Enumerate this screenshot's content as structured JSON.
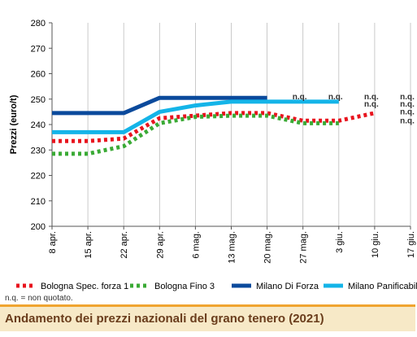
{
  "chart_data": {
    "type": "line",
    "ylabel": "Prezzi (euro/t)",
    "ylim": [
      200,
      280
    ],
    "yticks": [
      200,
      210,
      220,
      230,
      240,
      250,
      260,
      270,
      280
    ],
    "categories": [
      "8 apr.",
      "15 apr.",
      "22 apr.",
      "29 apr.",
      "6 mag.",
      "13 mag.",
      "20 mag.",
      "27 mag.",
      "3 giu.",
      "10 giu.",
      "17 giu."
    ],
    "grid": "vertical",
    "legend_position": "bottom",
    "series": [
      {
        "name": "Bologna Spec. forza 1",
        "color": "#e8141e",
        "style": "dotted",
        "values": [
          233.5,
          233.5,
          234.5,
          242.5,
          243.5,
          244.5,
          244.5,
          241.5,
          241.5,
          244.5,
          null
        ]
      },
      {
        "name": "Bologna Fino 3",
        "color": "#3aaa35",
        "style": "dotted",
        "values": [
          228.5,
          228.5,
          231.5,
          240.5,
          243,
          243.5,
          243.5,
          240.5,
          240.5,
          null,
          null
        ]
      },
      {
        "name": "Milano Di Forza",
        "color": "#0b4a9c",
        "style": "solid",
        "values": [
          244.5,
          244.5,
          244.5,
          250.5,
          250.5,
          250.5,
          250.5,
          null,
          null,
          null,
          null
        ]
      },
      {
        "name": "Milano Panificabile",
        "color": "#14b4e8",
        "style": "solid",
        "values": [
          237,
          237,
          237,
          245,
          247.5,
          249,
          249,
          249,
          249,
          null,
          null
        ]
      }
    ],
    "annotations": [
      {
        "text": "n.q.",
        "x": "27 mag.",
        "y": 250
      },
      {
        "text": "n.q.",
        "x": "3 giu.",
        "y": 250
      },
      {
        "text": "n.q.",
        "x": "10 giu.",
        "y": 250
      },
      {
        "text": "n.q.",
        "x": "10 giu.",
        "y": 247
      },
      {
        "text": "n.q.",
        "x": "17 giu.",
        "y": 250
      },
      {
        "text": "n.q.",
        "x": "17 giu.",
        "y": 247
      },
      {
        "text": "n.q.",
        "x": "17 giu.",
        "y": 244
      },
      {
        "text": "n.q.",
        "x": "17 giu.",
        "y": 240.5
      }
    ]
  },
  "note": "n.q. = non quotato.",
  "caption": "Andamento dei prezzi nazionali del grano tenero (2021)"
}
